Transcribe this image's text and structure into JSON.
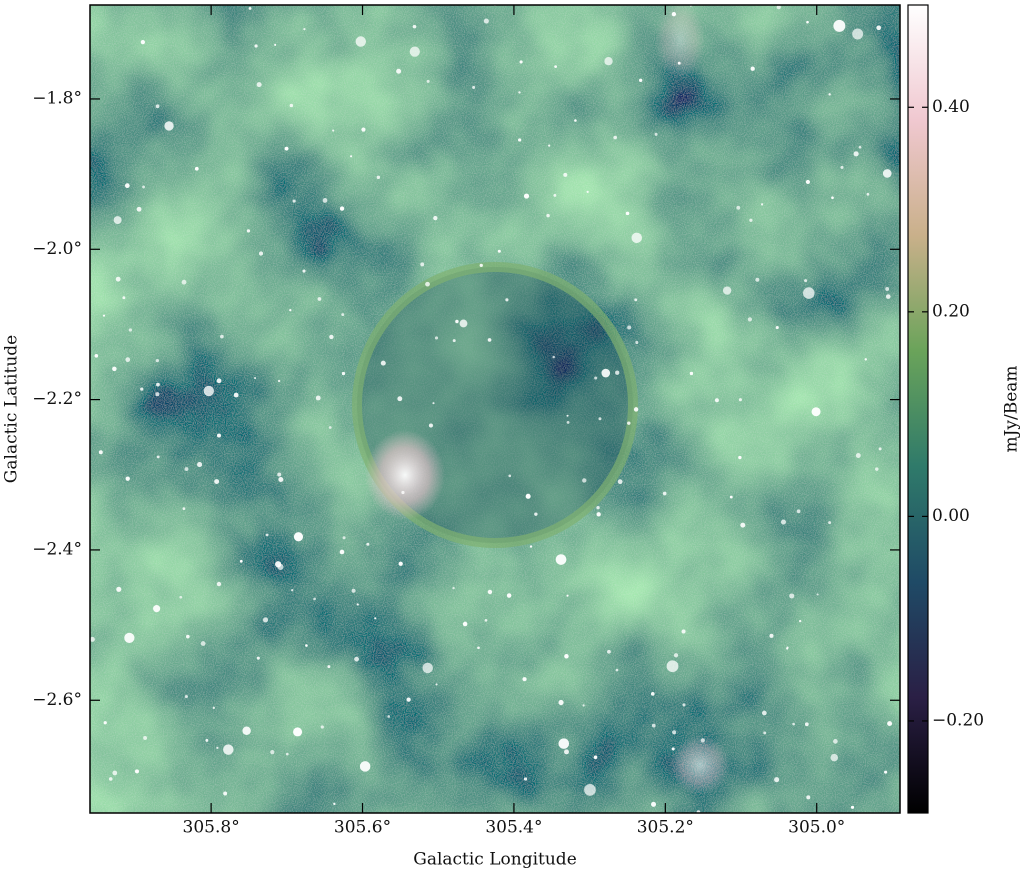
{
  "chart_data": {
    "type": "image",
    "x_label": "Galactic Longitude",
    "y_label": "Galactic Latitude",
    "colorbar_label": "mJy/Beam",
    "xlim": [
      305.96,
      304.89
    ],
    "ylim": [
      -2.75,
      -1.675
    ],
    "xticks": [
      {
        "value": 305.8,
        "label": "305.8°"
      },
      {
        "value": 305.6,
        "label": "305.6°"
      },
      {
        "value": 305.4,
        "label": "305.4°"
      },
      {
        "value": 305.2,
        "label": "305.2°"
      },
      {
        "value": 305.0,
        "label": "305.0°"
      }
    ],
    "yticks": [
      {
        "value": -1.8,
        "label": "−1.8°"
      },
      {
        "value": -2.0,
        "label": "−2.0°"
      },
      {
        "value": -2.2,
        "label": "−2.2°"
      },
      {
        "value": -2.4,
        "label": "−2.4°"
      },
      {
        "value": -2.6,
        "label": "−2.6°"
      }
    ],
    "clim": [
      -0.29,
      0.5
    ],
    "cticks": [
      {
        "value": 0.4,
        "label": "0.40"
      },
      {
        "value": 0.2,
        "label": "0.20"
      },
      {
        "value": 0.0,
        "label": "0.00"
      },
      {
        "value": -0.2,
        "label": "−0.20"
      }
    ],
    "colormap": [
      "#000000",
      "#2a1f45",
      "#1f4a66",
      "#2f7a6a",
      "#6aa35a",
      "#c9b08a",
      "#f0c8d0",
      "#ffffff"
    ]
  }
}
